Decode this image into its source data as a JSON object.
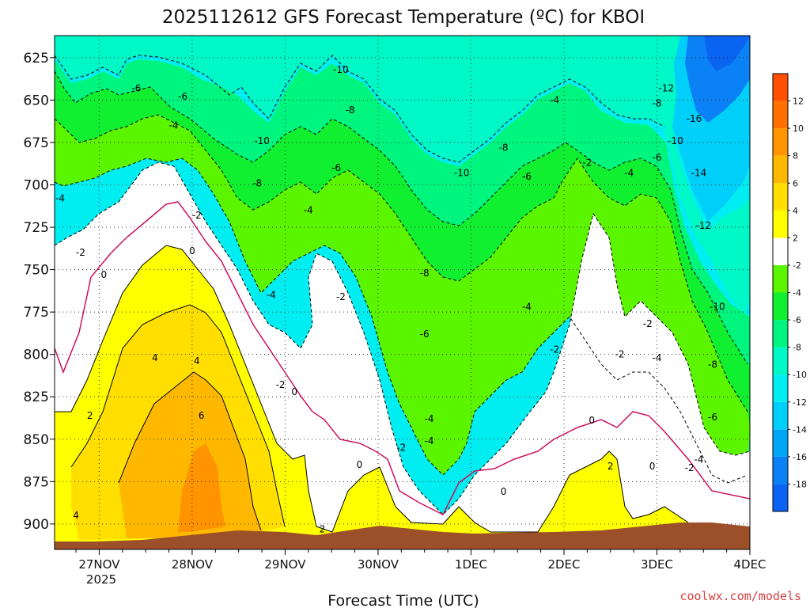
{
  "chart_data": {
    "type": "heatmap",
    "title": "2025112612 GFS Forecast Temperature (ºC) for KBOI",
    "xlabel": "Forecast Time (UTC)",
    "credit": "coolwx.com/models",
    "x_ticks": [
      "27NOV",
      "28NOV",
      "29NOV",
      "30NOV",
      "1DEC",
      "2DEC",
      "3DEC",
      "4DEC"
    ],
    "x_tick_year": "2025",
    "x_range_days": [
      -0.48,
      7.0
    ],
    "y_ticks": [
      625,
      650,
      675,
      700,
      725,
      750,
      775,
      800,
      825,
      850,
      875,
      900
    ],
    "y_range": [
      612,
      915
    ],
    "colorbar": {
      "labels": [
        "12",
        "10",
        "8",
        "6",
        "4",
        "2",
        "-2",
        "-4",
        "-6",
        "-8",
        "-10",
        "-12",
        "-14",
        "-16",
        "-18"
      ],
      "levels": [
        -20,
        -18,
        -16,
        -14,
        -12,
        -10,
        -8,
        -6,
        -4,
        -2,
        2,
        4,
        6,
        8,
        10,
        12,
        14
      ],
      "colors": [
        "#0a64f2",
        "#0a82f5",
        "#00a7f7",
        "#00cffa",
        "#00eef2",
        "#00f7c6",
        "#00f57f",
        "#10f030",
        "#5cf500",
        "#ffffff",
        "#ffff00",
        "#ffde00",
        "#ffb800",
        "#ff9400",
        "#ff7000",
        "#ff5000"
      ]
    },
    "isotherm_labels": [
      {
        "text": "-10",
        "x": 2.6,
        "p": 632
      },
      {
        "text": "-12",
        "x": 6.1,
        "p": 643
      },
      {
        "text": "-6",
        "x": 0.4,
        "p": 643
      },
      {
        "text": "-6",
        "x": 0.9,
        "p": 648
      },
      {
        "text": "-4",
        "x": 4.9,
        "p": 650
      },
      {
        "text": "-8",
        "x": 6.0,
        "p": 652
      },
      {
        "text": "-8",
        "x": 2.7,
        "p": 656
      },
      {
        "text": "-16",
        "x": 6.4,
        "p": 661
      },
      {
        "text": "-4",
        "x": 0.8,
        "p": 665
      },
      {
        "text": "-10",
        "x": 1.75,
        "p": 674
      },
      {
        "text": "-10",
        "x": 6.2,
        "p": 674
      },
      {
        "text": "-8",
        "x": 4.35,
        "p": 678
      },
      {
        "text": "-6",
        "x": 6.0,
        "p": 684
      },
      {
        "text": "-2",
        "x": 5.25,
        "p": 687
      },
      {
        "text": "-6",
        "x": 2.55,
        "p": 690
      },
      {
        "text": "-10",
        "x": 3.9,
        "p": 693
      },
      {
        "text": "-14",
        "x": 6.45,
        "p": 693
      },
      {
        "text": "-4",
        "x": 5.7,
        "p": 693
      },
      {
        "text": "-6",
        "x": 4.6,
        "p": 695
      },
      {
        "text": "-8",
        "x": 1.7,
        "p": 699
      },
      {
        "text": "-4",
        "x": -0.42,
        "p": 708
      },
      {
        "text": "-4",
        "x": 2.25,
        "p": 715
      },
      {
        "text": "-2",
        "x": 1.05,
        "p": 718
      },
      {
        "text": "-12",
        "x": 6.5,
        "p": 724
      },
      {
        "text": "0",
        "x": 1.0,
        "p": 739
      },
      {
        "text": "-2",
        "x": -0.2,
        "p": 740
      },
      {
        "text": "-8",
        "x": 3.5,
        "p": 752
      },
      {
        "text": "0",
        "x": 0.05,
        "p": 753
      },
      {
        "text": "-4",
        "x": 1.85,
        "p": 765
      },
      {
        "text": "-2",
        "x": 2.6,
        "p": 766
      },
      {
        "text": "-4",
        "x": 4.6,
        "p": 772
      },
      {
        "text": "-10",
        "x": 6.65,
        "p": 772
      },
      {
        "text": "-2",
        "x": 5.9,
        "p": 782
      },
      {
        "text": "-6",
        "x": 3.5,
        "p": 788
      },
      {
        "text": "-2",
        "x": 4.9,
        "p": 797
      },
      {
        "text": "-2",
        "x": 5.6,
        "p": 800
      },
      {
        "text": "-4",
        "x": 6.0,
        "p": 802
      },
      {
        "text": "4",
        "x": 0.6,
        "p": 802
      },
      {
        "text": "4",
        "x": 1.05,
        "p": 804
      },
      {
        "text": "-8",
        "x": 6.6,
        "p": 806
      },
      {
        "text": "-2",
        "x": 1.95,
        "p": 818
      },
      {
        "text": "0",
        "x": 2.1,
        "p": 822
      },
      {
        "text": "2",
        "x": -0.1,
        "p": 836
      },
      {
        "text": "6",
        "x": 1.1,
        "p": 836
      },
      {
        "text": "-6",
        "x": 6.6,
        "p": 837
      },
      {
        "text": "-4",
        "x": 3.55,
        "p": 838
      },
      {
        "text": "0",
        "x": 5.3,
        "p": 839
      },
      {
        "text": "-4",
        "x": 3.55,
        "p": 851
      },
      {
        "text": "-2",
        "x": 3.25,
        "p": 855
      },
      {
        "text": "-4",
        "x": 6.45,
        "p": 862
      },
      {
        "text": "0",
        "x": 2.8,
        "p": 865
      },
      {
        "text": "0",
        "x": 5.95,
        "p": 866
      },
      {
        "text": "2",
        "x": 5.5,
        "p": 866
      },
      {
        "text": "-2",
        "x": 6.35,
        "p": 867
      },
      {
        "text": "0",
        "x": 4.35,
        "p": 881
      },
      {
        "text": "4",
        "x": -0.25,
        "p": 895
      },
      {
        "text": "2",
        "x": 2.4,
        "p": 903
      }
    ]
  }
}
